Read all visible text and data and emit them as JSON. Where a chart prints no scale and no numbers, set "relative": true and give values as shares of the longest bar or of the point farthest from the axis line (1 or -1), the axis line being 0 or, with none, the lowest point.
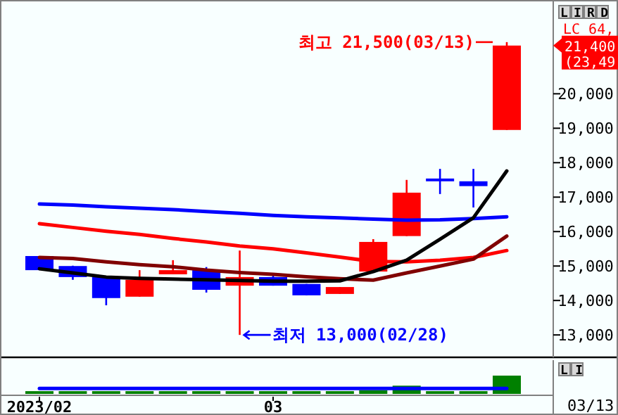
{
  "chart_data": [
    {
      "type": "candlestick",
      "categories": [
        null,
        null,
        null,
        null,
        null,
        null,
        null,
        null,
        null,
        null,
        null,
        null,
        null,
        null,
        null
      ],
      "ohlc": [
        [
          15290,
          15290,
          14880,
          14880
        ],
        [
          15000,
          15010,
          14600,
          14680
        ],
        [
          14680,
          14680,
          13860,
          14070
        ],
        [
          14110,
          14880,
          14110,
          14600
        ],
        [
          14760,
          15170,
          14760,
          14880
        ],
        [
          14880,
          14970,
          14230,
          14310
        ],
        [
          14430,
          15450,
          13000,
          14680
        ],
        [
          14680,
          14720,
          14430,
          14430
        ],
        [
          14480,
          14480,
          14150,
          14150
        ],
        [
          14190,
          14390,
          14190,
          14390
        ],
        [
          14840,
          15780,
          14840,
          15700
        ],
        [
          15870,
          17500,
          15870,
          17130
        ],
        [
          17540,
          17820,
          17090,
          17460
        ],
        [
          17460,
          17820,
          16700,
          17320
        ],
        [
          18950,
          21500,
          18950,
          21400
        ]
      ],
      "colors": [
        "#0000ff",
        "#0000ff",
        "#0000ff",
        "#ff0000",
        "#ff0000",
        "#0000ff",
        "#ff0000",
        "#0000ff",
        "#0000ff",
        "#ff0000",
        "#ff0000",
        "#ff0000",
        "#0000ff",
        "#0000ff",
        "#ff0000"
      ],
      "series": [
        {
          "type": "line",
          "color": "#0000ff",
          "values": [
            16800,
            16770,
            16720,
            16680,
            16640,
            16580,
            16530,
            16470,
            16430,
            16400,
            16360,
            16330,
            16340,
            16380,
            16430
          ]
        },
        {
          "type": "line",
          "color": "#ff0000",
          "values": [
            16230,
            16120,
            16010,
            15920,
            15800,
            15700,
            15580,
            15500,
            15380,
            15260,
            15130,
            15120,
            15170,
            15250,
            15450
          ]
        },
        {
          "type": "line",
          "color": "#800000",
          "values": [
            15250,
            15220,
            15120,
            15040,
            14980,
            14880,
            14810,
            14760,
            14690,
            14630,
            14590,
            14800,
            15000,
            15200,
            15870
          ]
        },
        {
          "type": "line",
          "color": "#000000",
          "values": [
            14920,
            14800,
            14680,
            14640,
            14620,
            14600,
            14580,
            14560,
            14560,
            14570,
            14840,
            15170,
            15780,
            16400,
            17760
          ]
        }
      ],
      "ylim": [
        12350,
        22600
      ],
      "yticks": [
        {
          "value": 13000,
          "label": "13,000"
        },
        {
          "value": 14000,
          "label": "14,000"
        },
        {
          "value": 15000,
          "label": "15,000"
        },
        {
          "value": 16000,
          "label": "16,000"
        },
        {
          "value": 17000,
          "label": "17,000"
        },
        {
          "value": 18000,
          "label": "18,000"
        },
        {
          "value": 19000,
          "label": "19,000"
        },
        {
          "value": 20000,
          "label": "20,000"
        }
      ],
      "tick_labels": "y",
      "annotations": [
        "LIRD",
        "LC 64,",
        "21,400",
        "(23,49",
        "최고 21,500(03/13)",
        "최저 13,000(02/28)"
      ]
    },
    {
      "type": "bar",
      "relative": true,
      "categories": [
        "2023/02",
        null,
        null,
        null,
        null,
        null,
        null,
        "03",
        null,
        null,
        null,
        null,
        null,
        null,
        null
      ],
      "values": [
        0.15,
        0.15,
        0.15,
        0.15,
        0.15,
        0.15,
        0.15,
        0.15,
        0.15,
        0.15,
        0.2,
        0.45,
        0.15,
        0.15,
        1
      ],
      "color": "#008000",
      "series": [
        {
          "type": "line",
          "color": "#0000ff",
          "values": [
            0.3,
            0.3,
            0.3,
            0.3,
            0.3,
            0.3,
            0.3,
            0.3,
            0.3,
            0.3,
            0.3,
            0.3,
            0.3,
            0.3,
            0.3
          ]
        }
      ],
      "tick_labels": "x",
      "annotations": [
        "LI",
        "03/13"
      ]
    }
  ]
}
